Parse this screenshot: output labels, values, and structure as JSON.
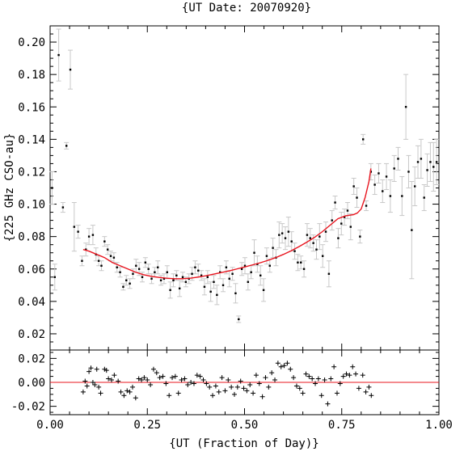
{
  "chart_data": {
    "type": "scatter",
    "title": "{UT Date: 20070920}",
    "xlabel": "{UT (Fraction of Day)}",
    "ylabel": "{225 GHz CSO-au}",
    "xlim": [
      0.0,
      1.0
    ],
    "ylim": [
      0.01,
      0.21
    ],
    "xticks": [
      "0.00",
      "0.25",
      "0.50",
      "0.75",
      "1.00"
    ],
    "yticks": [
      "0.02",
      "0.04",
      "0.06",
      "0.08",
      "0.10",
      "0.12",
      "0.14",
      "0.16",
      "0.18",
      "0.20"
    ],
    "colors": {
      "fit": "#e8141e",
      "errorbar": "#c8c8c8",
      "point": "#000000",
      "residual_zero": "#e8141e"
    },
    "points": [
      {
        "x": 0.005,
        "y": 0.11,
        "err": 0.01
      },
      {
        "x": 0.012,
        "y": 0.055,
        "err": 0.008
      },
      {
        "x": 0.022,
        "y": 0.192,
        "err": 0.016
      },
      {
        "x": 0.033,
        "y": 0.098,
        "err": 0.003
      },
      {
        "x": 0.042,
        "y": 0.136,
        "err": 0.002
      },
      {
        "x": 0.052,
        "y": 0.183,
        "err": 0.012
      },
      {
        "x": 0.062,
        "y": 0.086,
        "err": 0.015
      },
      {
        "x": 0.072,
        "y": 0.083,
        "err": 0.004
      },
      {
        "x": 0.082,
        "y": 0.065,
        "err": 0.003
      },
      {
        "x": 0.092,
        "y": 0.072,
        "err": 0.004
      },
      {
        "x": 0.1,
        "y": 0.08,
        "err": 0.005
      },
      {
        "x": 0.11,
        "y": 0.081,
        "err": 0.006
      },
      {
        "x": 0.118,
        "y": 0.069,
        "err": 0.004
      },
      {
        "x": 0.125,
        "y": 0.065,
        "err": 0.003
      },
      {
        "x": 0.132,
        "y": 0.062,
        "err": 0.003
      },
      {
        "x": 0.14,
        "y": 0.077,
        "err": 0.003
      },
      {
        "x": 0.148,
        "y": 0.072,
        "err": 0.003
      },
      {
        "x": 0.156,
        "y": 0.068,
        "err": 0.003
      },
      {
        "x": 0.164,
        "y": 0.067,
        "err": 0.003
      },
      {
        "x": 0.172,
        "y": 0.061,
        "err": 0.003
      },
      {
        "x": 0.18,
        "y": 0.058,
        "err": 0.003
      },
      {
        "x": 0.188,
        "y": 0.049,
        "err": 0.002
      },
      {
        "x": 0.196,
        "y": 0.053,
        "err": 0.003
      },
      {
        "x": 0.205,
        "y": 0.051,
        "err": 0.003
      },
      {
        "x": 0.213,
        "y": 0.057,
        "err": 0.003
      },
      {
        "x": 0.221,
        "y": 0.062,
        "err": 0.004
      },
      {
        "x": 0.229,
        "y": 0.06,
        "err": 0.004
      },
      {
        "x": 0.237,
        "y": 0.055,
        "err": 0.003
      },
      {
        "x": 0.245,
        "y": 0.064,
        "err": 0.003
      },
      {
        "x": 0.253,
        "y": 0.06,
        "err": 0.003
      },
      {
        "x": 0.261,
        "y": 0.054,
        "err": 0.003
      },
      {
        "x": 0.269,
        "y": 0.058,
        "err": 0.003
      },
      {
        "x": 0.277,
        "y": 0.061,
        "err": 0.004
      },
      {
        "x": 0.285,
        "y": 0.053,
        "err": 0.003
      },
      {
        "x": 0.293,
        "y": 0.054,
        "err": 0.003
      },
      {
        "x": 0.301,
        "y": 0.058,
        "err": 0.004
      },
      {
        "x": 0.309,
        "y": 0.047,
        "err": 0.005
      },
      {
        "x": 0.317,
        "y": 0.053,
        "err": 0.004
      },
      {
        "x": 0.325,
        "y": 0.056,
        "err": 0.003
      },
      {
        "x": 0.333,
        "y": 0.048,
        "err": 0.005
      },
      {
        "x": 0.341,
        "y": 0.055,
        "err": 0.003
      },
      {
        "x": 0.349,
        "y": 0.052,
        "err": 0.003
      },
      {
        "x": 0.357,
        "y": 0.054,
        "err": 0.003
      },
      {
        "x": 0.365,
        "y": 0.057,
        "err": 0.004
      },
      {
        "x": 0.373,
        "y": 0.061,
        "err": 0.004
      },
      {
        "x": 0.381,
        "y": 0.059,
        "err": 0.004
      },
      {
        "x": 0.389,
        "y": 0.056,
        "err": 0.003
      },
      {
        "x": 0.397,
        "y": 0.049,
        "err": 0.005
      },
      {
        "x": 0.405,
        "y": 0.055,
        "err": 0.004
      },
      {
        "x": 0.413,
        "y": 0.046,
        "err": 0.006
      },
      {
        "x": 0.421,
        "y": 0.052,
        "err": 0.004
      },
      {
        "x": 0.429,
        "y": 0.044,
        "err": 0.006
      },
      {
        "x": 0.437,
        "y": 0.058,
        "err": 0.004
      },
      {
        "x": 0.445,
        "y": 0.05,
        "err": 0.004
      },
      {
        "x": 0.453,
        "y": 0.061,
        "err": 0.004
      },
      {
        "x": 0.461,
        "y": 0.054,
        "err": 0.005
      },
      {
        "x": 0.469,
        "y": 0.057,
        "err": 0.004
      },
      {
        "x": 0.477,
        "y": 0.045,
        "err": 0.006
      },
      {
        "x": 0.485,
        "y": 0.029,
        "err": 0.002
      },
      {
        "x": 0.493,
        "y": 0.06,
        "err": 0.004
      },
      {
        "x": 0.501,
        "y": 0.062,
        "err": 0.005
      },
      {
        "x": 0.509,
        "y": 0.052,
        "err": 0.005
      },
      {
        "x": 0.517,
        "y": 0.058,
        "err": 0.004
      },
      {
        "x": 0.525,
        "y": 0.07,
        "err": 0.008
      },
      {
        "x": 0.533,
        "y": 0.063,
        "err": 0.005
      },
      {
        "x": 0.541,
        "y": 0.056,
        "err": 0.006
      },
      {
        "x": 0.549,
        "y": 0.047,
        "err": 0.007
      },
      {
        "x": 0.557,
        "y": 0.068,
        "err": 0.005
      },
      {
        "x": 0.565,
        "y": 0.062,
        "err": 0.004
      },
      {
        "x": 0.573,
        "y": 0.073,
        "err": 0.006
      },
      {
        "x": 0.581,
        "y": 0.067,
        "err": 0.005
      },
      {
        "x": 0.589,
        "y": 0.081,
        "err": 0.008
      },
      {
        "x": 0.597,
        "y": 0.082,
        "err": 0.006
      },
      {
        "x": 0.605,
        "y": 0.079,
        "err": 0.007
      },
      {
        "x": 0.613,
        "y": 0.083,
        "err": 0.009
      },
      {
        "x": 0.621,
        "y": 0.077,
        "err": 0.006
      },
      {
        "x": 0.629,
        "y": 0.071,
        "err": 0.005
      },
      {
        "x": 0.637,
        "y": 0.064,
        "err": 0.005
      },
      {
        "x": 0.645,
        "y": 0.064,
        "err": 0.004
      },
      {
        "x": 0.653,
        "y": 0.06,
        "err": 0.005
      },
      {
        "x": 0.661,
        "y": 0.081,
        "err": 0.007
      },
      {
        "x": 0.669,
        "y": 0.079,
        "err": 0.006
      },
      {
        "x": 0.677,
        "y": 0.076,
        "err": 0.005
      },
      {
        "x": 0.685,
        "y": 0.072,
        "err": 0.006
      },
      {
        "x": 0.693,
        "y": 0.08,
        "err": 0.008
      },
      {
        "x": 0.701,
        "y": 0.068,
        "err": 0.007
      },
      {
        "x": 0.709,
        "y": 0.083,
        "err": 0.006
      },
      {
        "x": 0.717,
        "y": 0.057,
        "err": 0.008
      },
      {
        "x": 0.725,
        "y": 0.09,
        "err": 0.006
      },
      {
        "x": 0.733,
        "y": 0.101,
        "err": 0.004
      },
      {
        "x": 0.741,
        "y": 0.079,
        "err": 0.006
      },
      {
        "x": 0.749,
        "y": 0.088,
        "err": 0.007
      },
      {
        "x": 0.757,
        "y": 0.092,
        "err": 0.005
      },
      {
        "x": 0.765,
        "y": 0.096,
        "err": 0.005
      },
      {
        "x": 0.773,
        "y": 0.086,
        "err": 0.008
      },
      {
        "x": 0.781,
        "y": 0.111,
        "err": 0.005
      },
      {
        "x": 0.789,
        "y": 0.104,
        "err": 0.006
      },
      {
        "x": 0.797,
        "y": 0.08,
        "err": 0.004
      },
      {
        "x": 0.805,
        "y": 0.14,
        "err": 0.003
      },
      {
        "x": 0.813,
        "y": 0.099,
        "err": 0.003
      },
      {
        "x": 0.825,
        "y": 0.12,
        "err": 0.005
      },
      {
        "x": 0.835,
        "y": 0.112,
        "err": 0.006
      },
      {
        "x": 0.845,
        "y": 0.119,
        "err": 0.006
      },
      {
        "x": 0.855,
        "y": 0.108,
        "err": 0.007
      },
      {
        "x": 0.865,
        "y": 0.117,
        "err": 0.008
      },
      {
        "x": 0.875,
        "y": 0.105,
        "err": 0.01
      },
      {
        "x": 0.885,
        "y": 0.122,
        "err": 0.008
      },
      {
        "x": 0.895,
        "y": 0.128,
        "err": 0.007
      },
      {
        "x": 0.905,
        "y": 0.105,
        "err": 0.012
      },
      {
        "x": 0.915,
        "y": 0.16,
        "err": 0.02
      },
      {
        "x": 0.922,
        "y": 0.12,
        "err": 0.01
      },
      {
        "x": 0.93,
        "y": 0.084,
        "err": 0.03
      },
      {
        "x": 0.938,
        "y": 0.111,
        "err": 0.012
      },
      {
        "x": 0.946,
        "y": 0.126,
        "err": 0.01
      },
      {
        "x": 0.954,
        "y": 0.128,
        "err": 0.012
      },
      {
        "x": 0.962,
        "y": 0.104,
        "err": 0.008
      },
      {
        "x": 0.97,
        "y": 0.121,
        "err": 0.01
      },
      {
        "x": 0.978,
        "y": 0.126,
        "err": 0.012
      },
      {
        "x": 0.986,
        "y": 0.123,
        "err": 0.015
      },
      {
        "x": 0.994,
        "y": 0.126,
        "err": 0.014
      }
    ],
    "fit": {
      "x": [
        0.085,
        0.1,
        0.12,
        0.14,
        0.16,
        0.18,
        0.2,
        0.22,
        0.24,
        0.26,
        0.28,
        0.3,
        0.32,
        0.34,
        0.36,
        0.38,
        0.4,
        0.42,
        0.44,
        0.46,
        0.48,
        0.5,
        0.52,
        0.54,
        0.56,
        0.58,
        0.6,
        0.62,
        0.64,
        0.66,
        0.68,
        0.7,
        0.72,
        0.74,
        0.76,
        0.78,
        0.79,
        0.8,
        0.81,
        0.82,
        0.825
      ],
      "y": [
        0.072,
        0.071,
        0.069,
        0.067,
        0.064,
        0.062,
        0.06,
        0.058,
        0.0565,
        0.0555,
        0.0548,
        0.0543,
        0.054,
        0.054,
        0.0543,
        0.055,
        0.0558,
        0.0568,
        0.0578,
        0.0588,
        0.06,
        0.0612,
        0.0625,
        0.0638,
        0.0653,
        0.067,
        0.069,
        0.0712,
        0.0738,
        0.0765,
        0.0795,
        0.083,
        0.087,
        0.091,
        0.0928,
        0.0935,
        0.0945,
        0.097,
        0.104,
        0.114,
        0.122
      ]
    },
    "residuals": {
      "ylim": [
        -0.027,
        0.027
      ],
      "yticks": [
        "0.02",
        "0.00",
        "-0.02"
      ],
      "points": [
        {
          "x": 0.085,
          "y": -0.008
        },
        {
          "x": 0.09,
          "y": 0.001
        },
        {
          "x": 0.095,
          "y": -0.003
        },
        {
          "x": 0.1,
          "y": 0.009
        },
        {
          "x": 0.105,
          "y": 0.012
        },
        {
          "x": 0.11,
          "y": 0.0
        },
        {
          "x": 0.115,
          "y": -0.002
        },
        {
          "x": 0.12,
          "y": 0.011
        },
        {
          "x": 0.125,
          "y": -0.004
        },
        {
          "x": 0.13,
          "y": -0.009
        },
        {
          "x": 0.14,
          "y": 0.011
        },
        {
          "x": 0.145,
          "y": 0.01
        },
        {
          "x": 0.15,
          "y": 0.003
        },
        {
          "x": 0.158,
          "y": 0.002
        },
        {
          "x": 0.165,
          "y": 0.006
        },
        {
          "x": 0.175,
          "y": 0.001
        },
        {
          "x": 0.182,
          "y": -0.008
        },
        {
          "x": 0.19,
          "y": -0.011
        },
        {
          "x": 0.198,
          "y": -0.007
        },
        {
          "x": 0.205,
          "y": -0.008
        },
        {
          "x": 0.212,
          "y": -0.004
        },
        {
          "x": 0.22,
          "y": -0.013
        },
        {
          "x": 0.228,
          "y": 0.003
        },
        {
          "x": 0.235,
          "y": 0.002
        },
        {
          "x": 0.242,
          "y": 0.004
        },
        {
          "x": 0.25,
          "y": 0.002
        },
        {
          "x": 0.258,
          "y": -0.002
        },
        {
          "x": 0.266,
          "y": 0.011
        },
        {
          "x": 0.274,
          "y": 0.008
        },
        {
          "x": 0.282,
          "y": 0.004
        },
        {
          "x": 0.29,
          "y": 0.005
        },
        {
          "x": 0.298,
          "y": -0.001
        },
        {
          "x": 0.306,
          "y": -0.011
        },
        {
          "x": 0.314,
          "y": 0.004
        },
        {
          "x": 0.322,
          "y": 0.005
        },
        {
          "x": 0.33,
          "y": -0.009
        },
        {
          "x": 0.338,
          "y": 0.002
        },
        {
          "x": 0.346,
          "y": 0.003
        },
        {
          "x": 0.354,
          "y": -0.002
        },
        {
          "x": 0.362,
          "y": 0.0
        },
        {
          "x": 0.37,
          "y": -0.001
        },
        {
          "x": 0.378,
          "y": 0.006
        },
        {
          "x": 0.386,
          "y": 0.005
        },
        {
          "x": 0.394,
          "y": 0.002
        },
        {
          "x": 0.402,
          "y": -0.001
        },
        {
          "x": 0.41,
          "y": -0.004
        },
        {
          "x": 0.418,
          "y": -0.011
        },
        {
          "x": 0.426,
          "y": -0.003
        },
        {
          "x": 0.434,
          "y": -0.008
        },
        {
          "x": 0.442,
          "y": 0.004
        },
        {
          "x": 0.45,
          "y": -0.007
        },
        {
          "x": 0.458,
          "y": 0.002
        },
        {
          "x": 0.466,
          "y": -0.004
        },
        {
          "x": 0.474,
          "y": -0.01
        },
        {
          "x": 0.482,
          "y": -0.004
        },
        {
          "x": 0.49,
          "y": 0.001
        },
        {
          "x": 0.498,
          "y": -0.005
        },
        {
          "x": 0.506,
          "y": -0.007
        },
        {
          "x": 0.514,
          "y": -0.002
        },
        {
          "x": 0.522,
          "y": -0.009
        },
        {
          "x": 0.53,
          "y": 0.006
        },
        {
          "x": 0.538,
          "y": -0.001
        },
        {
          "x": 0.546,
          "y": -0.012
        },
        {
          "x": 0.554,
          "y": 0.004
        },
        {
          "x": 0.562,
          "y": -0.004
        },
        {
          "x": 0.57,
          "y": 0.008
        },
        {
          "x": 0.578,
          "y": 0.002
        },
        {
          "x": 0.586,
          "y": 0.016
        },
        {
          "x": 0.594,
          "y": 0.013
        },
        {
          "x": 0.602,
          "y": 0.014
        },
        {
          "x": 0.61,
          "y": 0.016
        },
        {
          "x": 0.618,
          "y": 0.011
        },
        {
          "x": 0.626,
          "y": 0.004
        },
        {
          "x": 0.634,
          "y": -0.003
        },
        {
          "x": 0.642,
          "y": -0.005
        },
        {
          "x": 0.65,
          "y": -0.009
        },
        {
          "x": 0.658,
          "y": 0.007
        },
        {
          "x": 0.666,
          "y": 0.005
        },
        {
          "x": 0.674,
          "y": 0.003
        },
        {
          "x": 0.682,
          "y": -0.001
        },
        {
          "x": 0.69,
          "y": 0.003
        },
        {
          "x": 0.698,
          "y": -0.011
        },
        {
          "x": 0.706,
          "y": 0.002
        },
        {
          "x": 0.714,
          "y": -0.018
        },
        {
          "x": 0.722,
          "y": 0.003
        },
        {
          "x": 0.73,
          "y": 0.013
        },
        {
          "x": 0.738,
          "y": -0.009
        },
        {
          "x": 0.746,
          "y": -0.001
        },
        {
          "x": 0.754,
          "y": 0.005
        },
        {
          "x": 0.762,
          "y": 0.007
        },
        {
          "x": 0.77,
          "y": 0.006
        },
        {
          "x": 0.778,
          "y": 0.013
        },
        {
          "x": 0.786,
          "y": 0.007
        },
        {
          "x": 0.794,
          "y": -0.005
        },
        {
          "x": 0.804,
          "y": 0.006
        },
        {
          "x": 0.812,
          "y": -0.008
        },
        {
          "x": 0.82,
          "y": -0.004
        },
        {
          "x": 0.826,
          "y": -0.011
        }
      ]
    }
  }
}
